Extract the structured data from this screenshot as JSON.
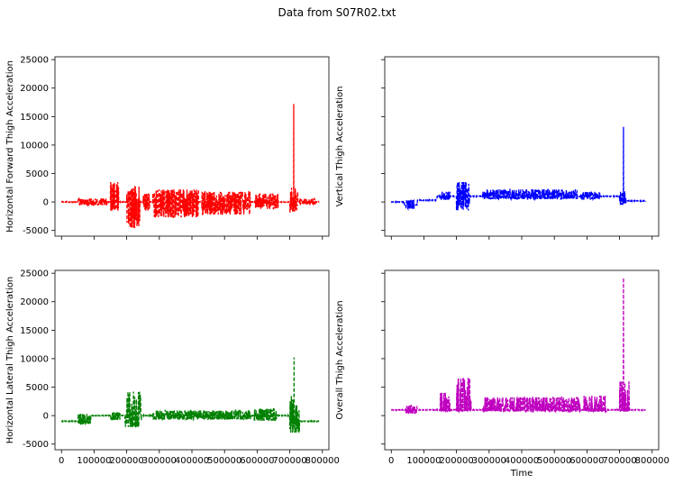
{
  "figure": {
    "title": "Data from S07R02.txt"
  },
  "chart_data": [
    {
      "type": "line",
      "panel": "top-left",
      "color": "#ff0000",
      "line_style": "dashed",
      "ylabel": "Horizontal Forward Thigh Acceleration",
      "xlabel": "",
      "xlim": [
        -20000,
        820000
      ],
      "ylim": [
        -6000,
        25500
      ],
      "x_ticks": [
        0,
        100000,
        200000,
        300000,
        400000,
        500000,
        600000,
        700000,
        800000
      ],
      "x_tick_labels_visible": false,
      "y_ticks": [
        -5000,
        0,
        5000,
        10000,
        15000,
        20000,
        25000
      ],
      "y_tick_labels_visible": true,
      "baseline": 0,
      "x_start": 0,
      "x_end": 790000,
      "bursts": [
        {
          "x0": 50000,
          "x1": 85000,
          "high": 500,
          "low": -700
        },
        {
          "x0": 85000,
          "x1": 140000,
          "high": 600,
          "low": -600
        },
        {
          "x0": 150000,
          "x1": 175000,
          "high": 3500,
          "low": -1500
        },
        {
          "x0": 200000,
          "x1": 240000,
          "high": 3000,
          "low": -4500
        },
        {
          "x0": 250000,
          "x1": 270000,
          "high": 1500,
          "low": -1500
        },
        {
          "x0": 280000,
          "x1": 420000,
          "high": 2200,
          "low": -2700
        },
        {
          "x0": 430000,
          "x1": 580000,
          "high": 1800,
          "low": -2200
        },
        {
          "x0": 595000,
          "x1": 665000,
          "high": 1500,
          "low": -1200
        },
        {
          "x0": 700000,
          "x1": 725000,
          "high": 2500,
          "low": -2000
        },
        {
          "x0": 730000,
          "x1": 780000,
          "high": 600,
          "low": -400
        }
      ],
      "spikes": [
        {
          "x": 712000,
          "low": -1000,
          "high": 17200
        }
      ]
    },
    {
      "type": "line",
      "panel": "top-right",
      "color": "#0000ff",
      "line_style": "dashed",
      "ylabel": "Vertical Thigh Acceleration",
      "xlabel": "",
      "xlim": [
        -20000,
        820000
      ],
      "ylim": [
        -6000,
        25500
      ],
      "x_ticks": [
        0,
        100000,
        200000,
        300000,
        400000,
        500000,
        600000,
        700000,
        800000
      ],
      "x_tick_labels_visible": false,
      "y_ticks": [
        -5000,
        0,
        5000,
        10000,
        15000,
        20000,
        25000
      ],
      "y_tick_labels_visible": false,
      "baseline": 0,
      "x_start": 0,
      "x_end": 780000,
      "level_shifts": [
        {
          "x0": 40000,
          "x1": 80000,
          "level": -500
        },
        {
          "x0": 80000,
          "x1": 140000,
          "level": 300
        },
        {
          "x0": 140000,
          "x1": 700000,
          "level": 1000
        },
        {
          "x0": 700000,
          "x1": 780000,
          "level": 200
        }
      ],
      "bursts": [
        {
          "x0": 45000,
          "x1": 70000,
          "high": 300,
          "low": -1200
        },
        {
          "x0": 150000,
          "x1": 180000,
          "high": 1800,
          "low": 300
        },
        {
          "x0": 200000,
          "x1": 240000,
          "high": 3500,
          "low": -1500
        },
        {
          "x0": 280000,
          "x1": 570000,
          "high": 2200,
          "low": 500
        },
        {
          "x0": 580000,
          "x1": 640000,
          "high": 1800,
          "low": 500
        },
        {
          "x0": 700000,
          "x1": 720000,
          "high": 2000,
          "low": -500
        }
      ],
      "spikes": [
        {
          "x": 712000,
          "low": -200,
          "high": 13200
        }
      ]
    },
    {
      "type": "line",
      "panel": "bottom-left",
      "color": "#008000",
      "line_style": "dashed",
      "ylabel": "Horizontal Lateral Thigh Acceleration",
      "xlabel": "",
      "xlim": [
        -20000,
        820000
      ],
      "ylim": [
        -6000,
        25500
      ],
      "x_ticks": [
        0,
        100000,
        200000,
        300000,
        400000,
        500000,
        600000,
        700000,
        800000
      ],
      "x_tick_labels": [
        "0",
        "100000",
        "200000",
        "300000",
        "400000",
        "500000",
        "600000",
        "700000",
        "800000"
      ],
      "x_tick_labels_visible": true,
      "y_ticks": [
        -5000,
        0,
        5000,
        10000,
        15000,
        20000,
        25000
      ],
      "y_tick_labels_visible": true,
      "baseline": -1000,
      "x_start": 0,
      "x_end": 790000,
      "level_shifts": [
        {
          "x0": 0,
          "x1": 90000,
          "level": -1000
        },
        {
          "x0": 90000,
          "x1": 700000,
          "level": 0
        },
        {
          "x0": 700000,
          "x1": 760000,
          "level": -1000
        }
      ],
      "bursts": [
        {
          "x0": 50000,
          "x1": 90000,
          "high": 300,
          "low": -1500
        },
        {
          "x0": 150000,
          "x1": 180000,
          "high": 600,
          "low": -800
        },
        {
          "x0": 195000,
          "x1": 245000,
          "high": 4200,
          "low": -2000
        },
        {
          "x0": 280000,
          "x1": 580000,
          "high": 900,
          "low": -700
        },
        {
          "x0": 590000,
          "x1": 660000,
          "high": 1200,
          "low": -900
        },
        {
          "x0": 700000,
          "x1": 730000,
          "high": 3500,
          "low": -3000
        }
      ],
      "spikes": [
        {
          "x": 713000,
          "low": -1500,
          "high": 10200
        }
      ]
    },
    {
      "type": "line",
      "panel": "bottom-right",
      "color": "#bf00bf",
      "line_style": "dashed",
      "ylabel": "Overall Thigh Acceleration",
      "xlabel": "Time",
      "xlim": [
        -20000,
        820000
      ],
      "ylim": [
        -6000,
        25500
      ],
      "x_ticks": [
        0,
        100000,
        200000,
        300000,
        400000,
        500000,
        600000,
        700000,
        800000
      ],
      "x_tick_labels": [
        "0",
        "100000",
        "200000",
        "300000",
        "400000",
        "500000",
        "600000",
        "700000",
        "800000"
      ],
      "x_tick_labels_visible": true,
      "y_ticks": [
        -5000,
        0,
        5000,
        10000,
        15000,
        20000,
        25000
      ],
      "y_tick_labels_visible": false,
      "baseline": 1000,
      "x_start": 0,
      "x_end": 780000,
      "bursts": [
        {
          "x0": 45000,
          "x1": 80000,
          "high": 1800,
          "low": 300
        },
        {
          "x0": 150000,
          "x1": 180000,
          "high": 4000,
          "low": 700
        },
        {
          "x0": 200000,
          "x1": 245000,
          "high": 6500,
          "low": 700
        },
        {
          "x0": 280000,
          "x1": 580000,
          "high": 3200,
          "low": 700
        },
        {
          "x0": 590000,
          "x1": 660000,
          "high": 3500,
          "low": 700
        },
        {
          "x0": 700000,
          "x1": 730000,
          "high": 6000,
          "low": 700
        }
      ],
      "spikes": [
        {
          "x": 712000,
          "low": 1000,
          "high": 24200
        }
      ]
    }
  ]
}
